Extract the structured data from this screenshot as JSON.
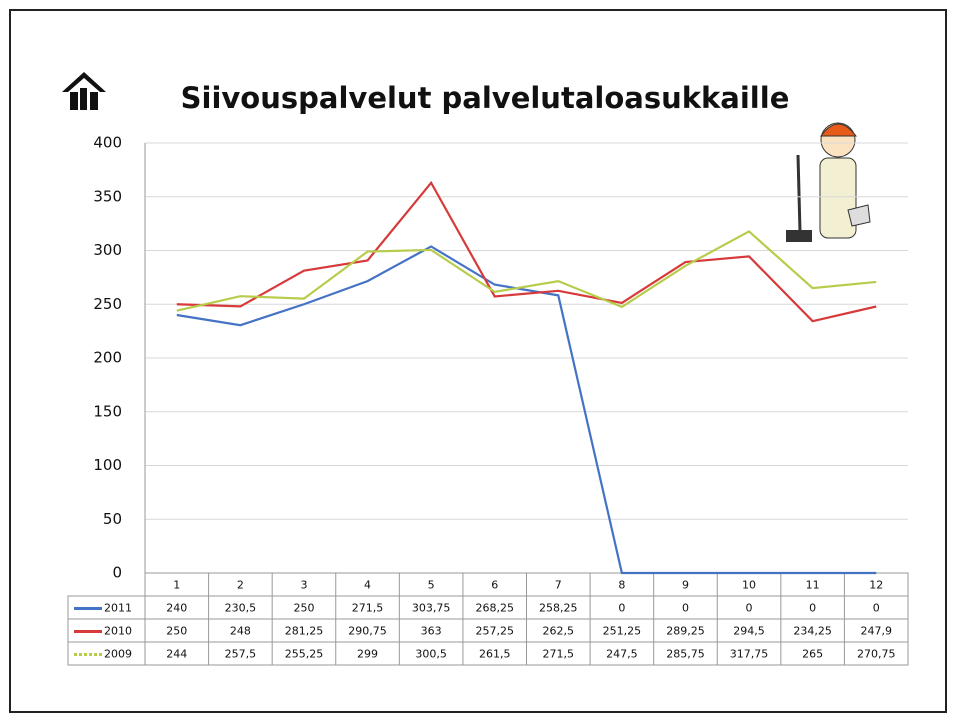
{
  "chart_data": {
    "type": "line",
    "title": "Siivouspalvelut palvelutaloasukkaille",
    "categories": [
      "1",
      "2",
      "3",
      "4",
      "5",
      "6",
      "7",
      "8",
      "9",
      "10",
      "11",
      "12"
    ],
    "series": [
      {
        "name": "2011",
        "color": "#4472c4",
        "values": [
          240,
          230.5,
          250,
          271.5,
          303.75,
          268.25,
          258.25,
          0,
          0,
          0,
          0,
          0
        ],
        "value_labels": [
          "240",
          "230,5",
          "250",
          "271,5",
          "303,75",
          "268,25",
          "258,25",
          "0",
          "0",
          "0",
          "0",
          "0"
        ]
      },
      {
        "name": "2010",
        "color": "#d63a3a",
        "values": [
          250,
          248,
          281.25,
          290.75,
          363,
          257.25,
          262.5,
          251.25,
          289.25,
          294.5,
          234.25,
          247.9
        ],
        "value_labels": [
          "250",
          "248",
          "281,25",
          "290,75",
          "363",
          "257,25",
          "262,5",
          "251,25",
          "289,25",
          "294,5",
          "234,25",
          "247,9"
        ]
      },
      {
        "name": "2009",
        "color": "#b8cc4c",
        "values": [
          244,
          257.5,
          255.25,
          299,
          300.5,
          261.5,
          271.5,
          247.5,
          285.75,
          317.75,
          265,
          270.75
        ],
        "value_labels": [
          "244",
          "257,5",
          "255,25",
          "299",
          "300,5",
          "261,5",
          "271,5",
          "247,5",
          "285,75",
          "317,75",
          "265",
          "270,75"
        ]
      }
    ],
    "ylim": [
      0,
      400
    ],
    "yticks": [
      0,
      50,
      100,
      150,
      200,
      250,
      300,
      350,
      400
    ],
    "grid": true
  }
}
